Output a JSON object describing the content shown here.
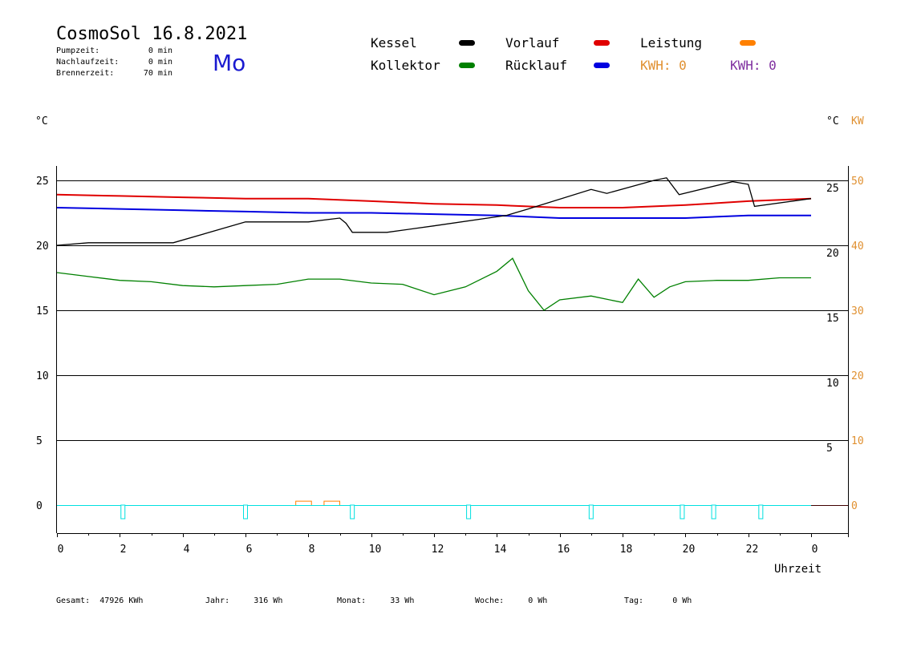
{
  "header": {
    "title": "CosmoSol 16.8.2021",
    "weekday": "Mo",
    "pump_label": "Pumpzeit:",
    "pump_value": "0 min",
    "nachlauf_label": "Nachlaufzeit:",
    "nachlauf_value": "0 min",
    "brenner_label": "Brennerzeit:",
    "brenner_value": "70 min"
  },
  "legend": {
    "kessel": "Kessel",
    "kollektor": "Kollektor",
    "vorlauf": "Vorlauf",
    "ruecklauf": "Rücklauf",
    "leistung": "Leistung",
    "kwh1": "KWH: 0",
    "kwh2": "KWH: 0",
    "colors": {
      "kessel": "#000000",
      "kollektor": "#008000",
      "vorlauf": "#e00000",
      "ruecklauf": "#0000e0",
      "leistung": "#ff8000",
      "kwh1": "#e09030",
      "kwh2": "#8030a0",
      "pump": "#00e0e0"
    }
  },
  "axes": {
    "left_unit": "°C",
    "right_unit": "°C",
    "right_unit2": "KW",
    "x_label": "Uhrzeit"
  },
  "footer": {
    "gesamt_label": "Gesamt:",
    "gesamt_value": "47926 KWh",
    "jahr_label": "Jahr:",
    "jahr_value": "316 Wh",
    "monat_label": "Monat:",
    "monat_value": "33 Wh",
    "woche_label": "Woche:",
    "woche_value": "0 Wh",
    "tag_label": "Tag:",
    "tag_value": "0 Wh"
  },
  "chart_data": {
    "type": "line",
    "xlabel": "Uhrzeit",
    "xlim": [
      0,
      24
    ],
    "ylim_left": [
      -2,
      27
    ],
    "x_tick_labels": [
      "0",
      "2",
      "4",
      "6",
      "8",
      "10",
      "12",
      "14",
      "16",
      "18",
      "20",
      "22",
      "0"
    ],
    "y_left_ticks": [
      0,
      5,
      10,
      15,
      20,
      25
    ],
    "y_right_temp_ticks": [
      5,
      10,
      15,
      20,
      25
    ],
    "y_right_kw_ticks": [
      0,
      10,
      20,
      30,
      40,
      50
    ],
    "grid_y": [
      5,
      10,
      15,
      20,
      25
    ],
    "series": [
      {
        "name": "Vorlauf",
        "color": "#e00000",
        "x": [
          0,
          2,
          4,
          6,
          8,
          10,
          12,
          14,
          16,
          18,
          20,
          22,
          24
        ],
        "y": [
          23.9,
          23.8,
          23.7,
          23.6,
          23.6,
          23.4,
          23.2,
          23.1,
          22.9,
          22.9,
          23.1,
          23.4,
          23.6
        ]
      },
      {
        "name": "Rücklauf",
        "color": "#0000e0",
        "x": [
          0,
          2,
          4,
          6,
          8,
          10,
          12,
          14,
          16,
          18,
          20,
          22,
          24
        ],
        "y": [
          22.9,
          22.8,
          22.7,
          22.6,
          22.5,
          22.5,
          22.4,
          22.3,
          22.1,
          22.1,
          22.1,
          22.3,
          22.3
        ]
      },
      {
        "name": "Kessel",
        "color": "#000000",
        "x": [
          0,
          1.0,
          3.7,
          6.0,
          8.0,
          9.0,
          9.2,
          9.4,
          10.5,
          12.0,
          14.0,
          14.3,
          15.0,
          17.0,
          17.5,
          19.0,
          19.4,
          19.8,
          21.5,
          22.0,
          22.2,
          24.0
        ],
        "y": [
          20.0,
          20.2,
          20.2,
          21.8,
          21.8,
          22.1,
          21.7,
          21.0,
          21.0,
          21.5,
          22.2,
          22.3,
          22.8,
          24.3,
          24.0,
          25.0,
          25.2,
          23.9,
          24.9,
          24.7,
          23.0,
          23.6
        ]
      },
      {
        "name": "Kollektor",
        "color": "#008000",
        "x": [
          0,
          1,
          2,
          3,
          4,
          5,
          6,
          7,
          8,
          9,
          10,
          11,
          12,
          13,
          14,
          14.5,
          15,
          15.5,
          16,
          17,
          18,
          18.5,
          19,
          19.5,
          20,
          21,
          22,
          23,
          24
        ],
        "y": [
          17.9,
          17.6,
          17.3,
          17.2,
          16.9,
          16.8,
          16.9,
          17.0,
          17.4,
          17.4,
          17.1,
          17.0,
          16.2,
          16.8,
          18.0,
          19.0,
          16.5,
          15.0,
          15.8,
          16.1,
          15.6,
          17.4,
          16.0,
          16.8,
          17.2,
          17.3,
          17.3,
          17.5,
          17.5
        ]
      },
      {
        "name": "Leistung",
        "color": "#ff8000",
        "x": [
          7.6,
          8.1,
          8.5,
          9.0
        ],
        "y": [
          0.3,
          0.3,
          0.3,
          0.3
        ]
      }
    ],
    "pump_pulses_x": [
      2.1,
      6.0,
      9.4,
      13.1,
      17.0,
      19.9,
      20.9,
      22.4
    ]
  }
}
